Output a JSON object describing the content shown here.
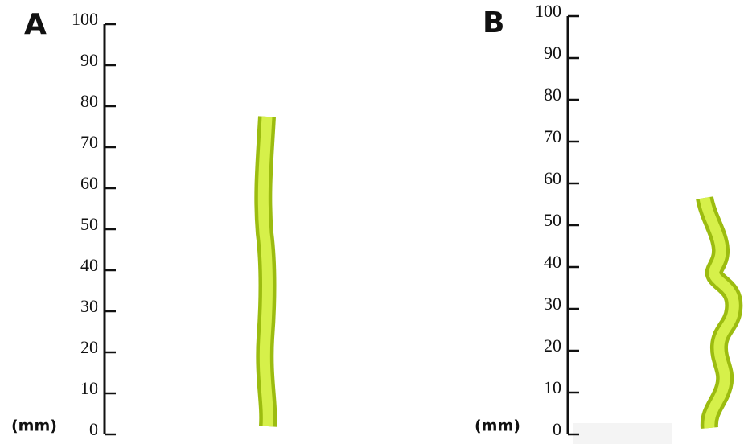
{
  "panels": [
    {
      "label": "A",
      "unit": "(mm)",
      "ticks": [
        0,
        10,
        20,
        30,
        40,
        50,
        60,
        70,
        80,
        90,
        100
      ]
    },
    {
      "label": "B",
      "unit": "(mm)",
      "ticks": [
        0,
        10,
        20,
        30,
        40,
        50,
        60,
        70,
        80,
        90,
        100
      ]
    }
  ]
}
